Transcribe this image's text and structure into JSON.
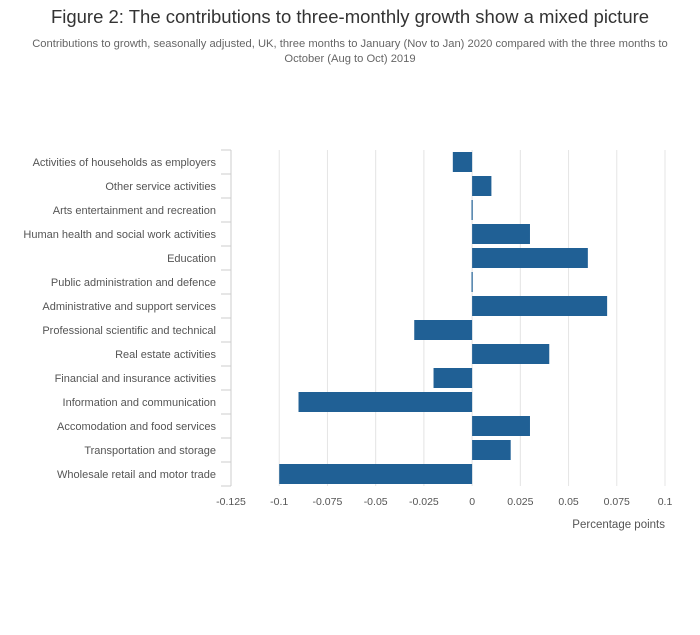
{
  "header": {
    "title": "Figure 2: The contributions to three-monthly growth show a mixed picture",
    "subtitle": "Contributions to growth, seasonally adjusted, UK, three months to January (Nov to Jan) 2020 compared with the three months to October (Aug to Oct) 2019"
  },
  "chart_data": {
    "type": "bar",
    "orientation": "horizontal",
    "title": "Figure 2: The contributions to three-monthly growth show a mixed picture",
    "subtitle": "Contributions to growth, seasonally adjusted, UK, three months to January (Nov to Jan) 2020 compared with the three months to October (Aug to Oct) 2019",
    "xlabel": "Percentage points",
    "ylabel": "",
    "xlim": [
      -0.125,
      0.1
    ],
    "xticks": [
      -0.125,
      -0.1,
      -0.075,
      -0.05,
      -0.025,
      0,
      0.025,
      0.05,
      0.075,
      0.1
    ],
    "xtick_labels": [
      "-0.125",
      "-0.1",
      "-0.075",
      "-0.05",
      "-0.025",
      "0",
      "0.025",
      "0.05",
      "0.075",
      "0.1"
    ],
    "grid": true,
    "legend": "none",
    "bar_color": "#206095",
    "categories": [
      "Activities of households as employers",
      "Other service activities",
      "Arts entertainment and recreation",
      "Human health and social work activities",
      "Education",
      "Public administration and defence",
      "Administrative and support services",
      "Professional scientific and technical",
      "Real estate activities",
      "Financial and insurance activities",
      "Information and communication",
      "Accomodation and food services",
      "Transportation and storage",
      "Wholesale retail and motor trade"
    ],
    "values": [
      -0.01,
      0.01,
      -0.0005,
      0.03,
      0.06,
      -0.0005,
      0.07,
      -0.03,
      0.04,
      -0.02,
      -0.09,
      0.03,
      0.02,
      -0.1
    ]
  }
}
